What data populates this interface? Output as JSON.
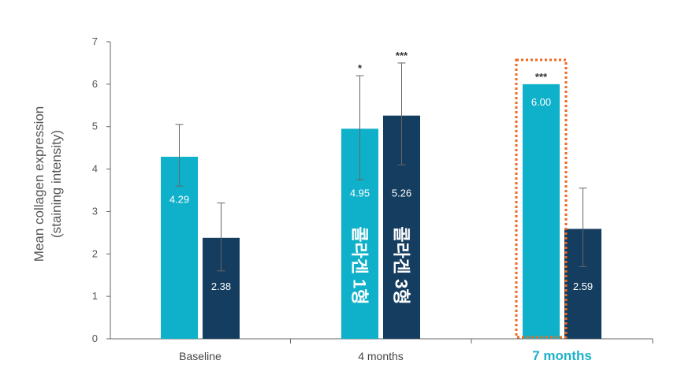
{
  "chart_data": {
    "type": "bar",
    "ylabel_lines": [
      "Mean collagen expression",
      "(staining intensity)"
    ],
    "ylim": [
      0,
      7
    ],
    "yticks": [
      0,
      1,
      2,
      3,
      4,
      5,
      6,
      7
    ],
    "categories": [
      "Baseline",
      "4 months",
      "7 months"
    ],
    "highlight_category": "7 months",
    "grid": false,
    "series": [
      {
        "values": [
          4.29,
          4.95,
          6.0
        ],
        "value_labels": [
          "4.29",
          "4.95",
          "6.00"
        ],
        "error_low": [
          3.6,
          3.75,
          null
        ],
        "error_high": [
          5.05,
          6.2,
          null
        ],
        "significance": [
          "",
          "*",
          "***"
        ],
        "bar_text": [
          "",
          "콜라겐 1형",
          ""
        ],
        "color": "#0fb0c9"
      },
      {
        "values": [
          2.38,
          5.26,
          2.59
        ],
        "value_labels": [
          "2.38",
          "5.26",
          "2.59"
        ],
        "error_low": [
          1.6,
          4.1,
          1.7
        ],
        "error_high": [
          3.2,
          6.5,
          3.55
        ],
        "significance": [
          "",
          "***",
          ""
        ],
        "bar_text": [
          "",
          "콜라겐 3형",
          ""
        ],
        "color": "#153d5f"
      }
    ],
    "highlight_box_color": "#f0681e"
  }
}
